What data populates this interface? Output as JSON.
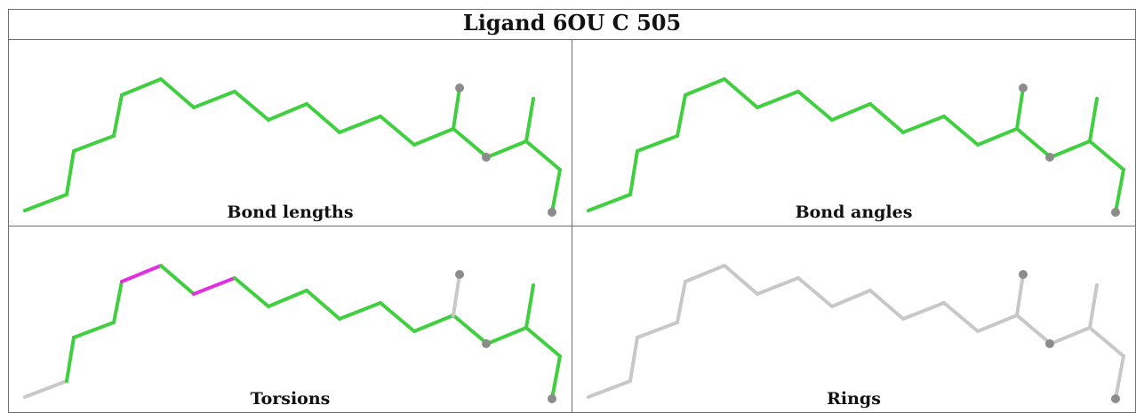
{
  "title": "Ligand 6OU C 505",
  "colors": {
    "ok": "#3fcf3f",
    "outlier": "#e030e0",
    "neutral": "#c8c8c8",
    "atom": "#8c8c8c"
  },
  "panels": [
    {
      "caption": "Bond lengths",
      "segments": [
        "ok",
        "ok",
        "ok",
        "ok",
        "ok",
        "ok",
        "ok",
        "ok",
        "ok",
        "ok",
        "ok",
        "ok",
        "ok",
        "ok",
        "ok"
      ],
      "branch": [
        "ok",
        "ok",
        "ok",
        "ok",
        "ok",
        "ok"
      ]
    },
    {
      "caption": "Bond angles",
      "segments": [
        "ok",
        "ok",
        "ok",
        "ok",
        "ok",
        "ok",
        "ok",
        "ok",
        "ok",
        "ok",
        "ok",
        "ok",
        "ok",
        "ok",
        "ok"
      ],
      "branch": [
        "ok",
        "ok",
        "ok",
        "ok",
        "ok",
        "ok"
      ]
    },
    {
      "caption": "Torsions",
      "segments": [
        "neutral",
        "ok",
        "ok",
        "ok",
        "outlier",
        "ok",
        "outlier",
        "ok",
        "ok",
        "ok",
        "ok",
        "ok",
        "ok",
        "ok",
        "ok"
      ],
      "branch": [
        "neutral",
        "ok",
        "ok",
        "ok",
        "neutral",
        "neutral"
      ]
    },
    {
      "caption": "Rings",
      "segments": [
        "neutral",
        "neutral",
        "neutral",
        "neutral",
        "neutral",
        "neutral",
        "neutral",
        "neutral",
        "neutral",
        "neutral",
        "neutral",
        "neutral",
        "neutral",
        "neutral",
        "neutral"
      ],
      "branch": [
        "neutral",
        "neutral",
        "neutral",
        "neutral",
        "neutral",
        "neutral"
      ]
    }
  ]
}
